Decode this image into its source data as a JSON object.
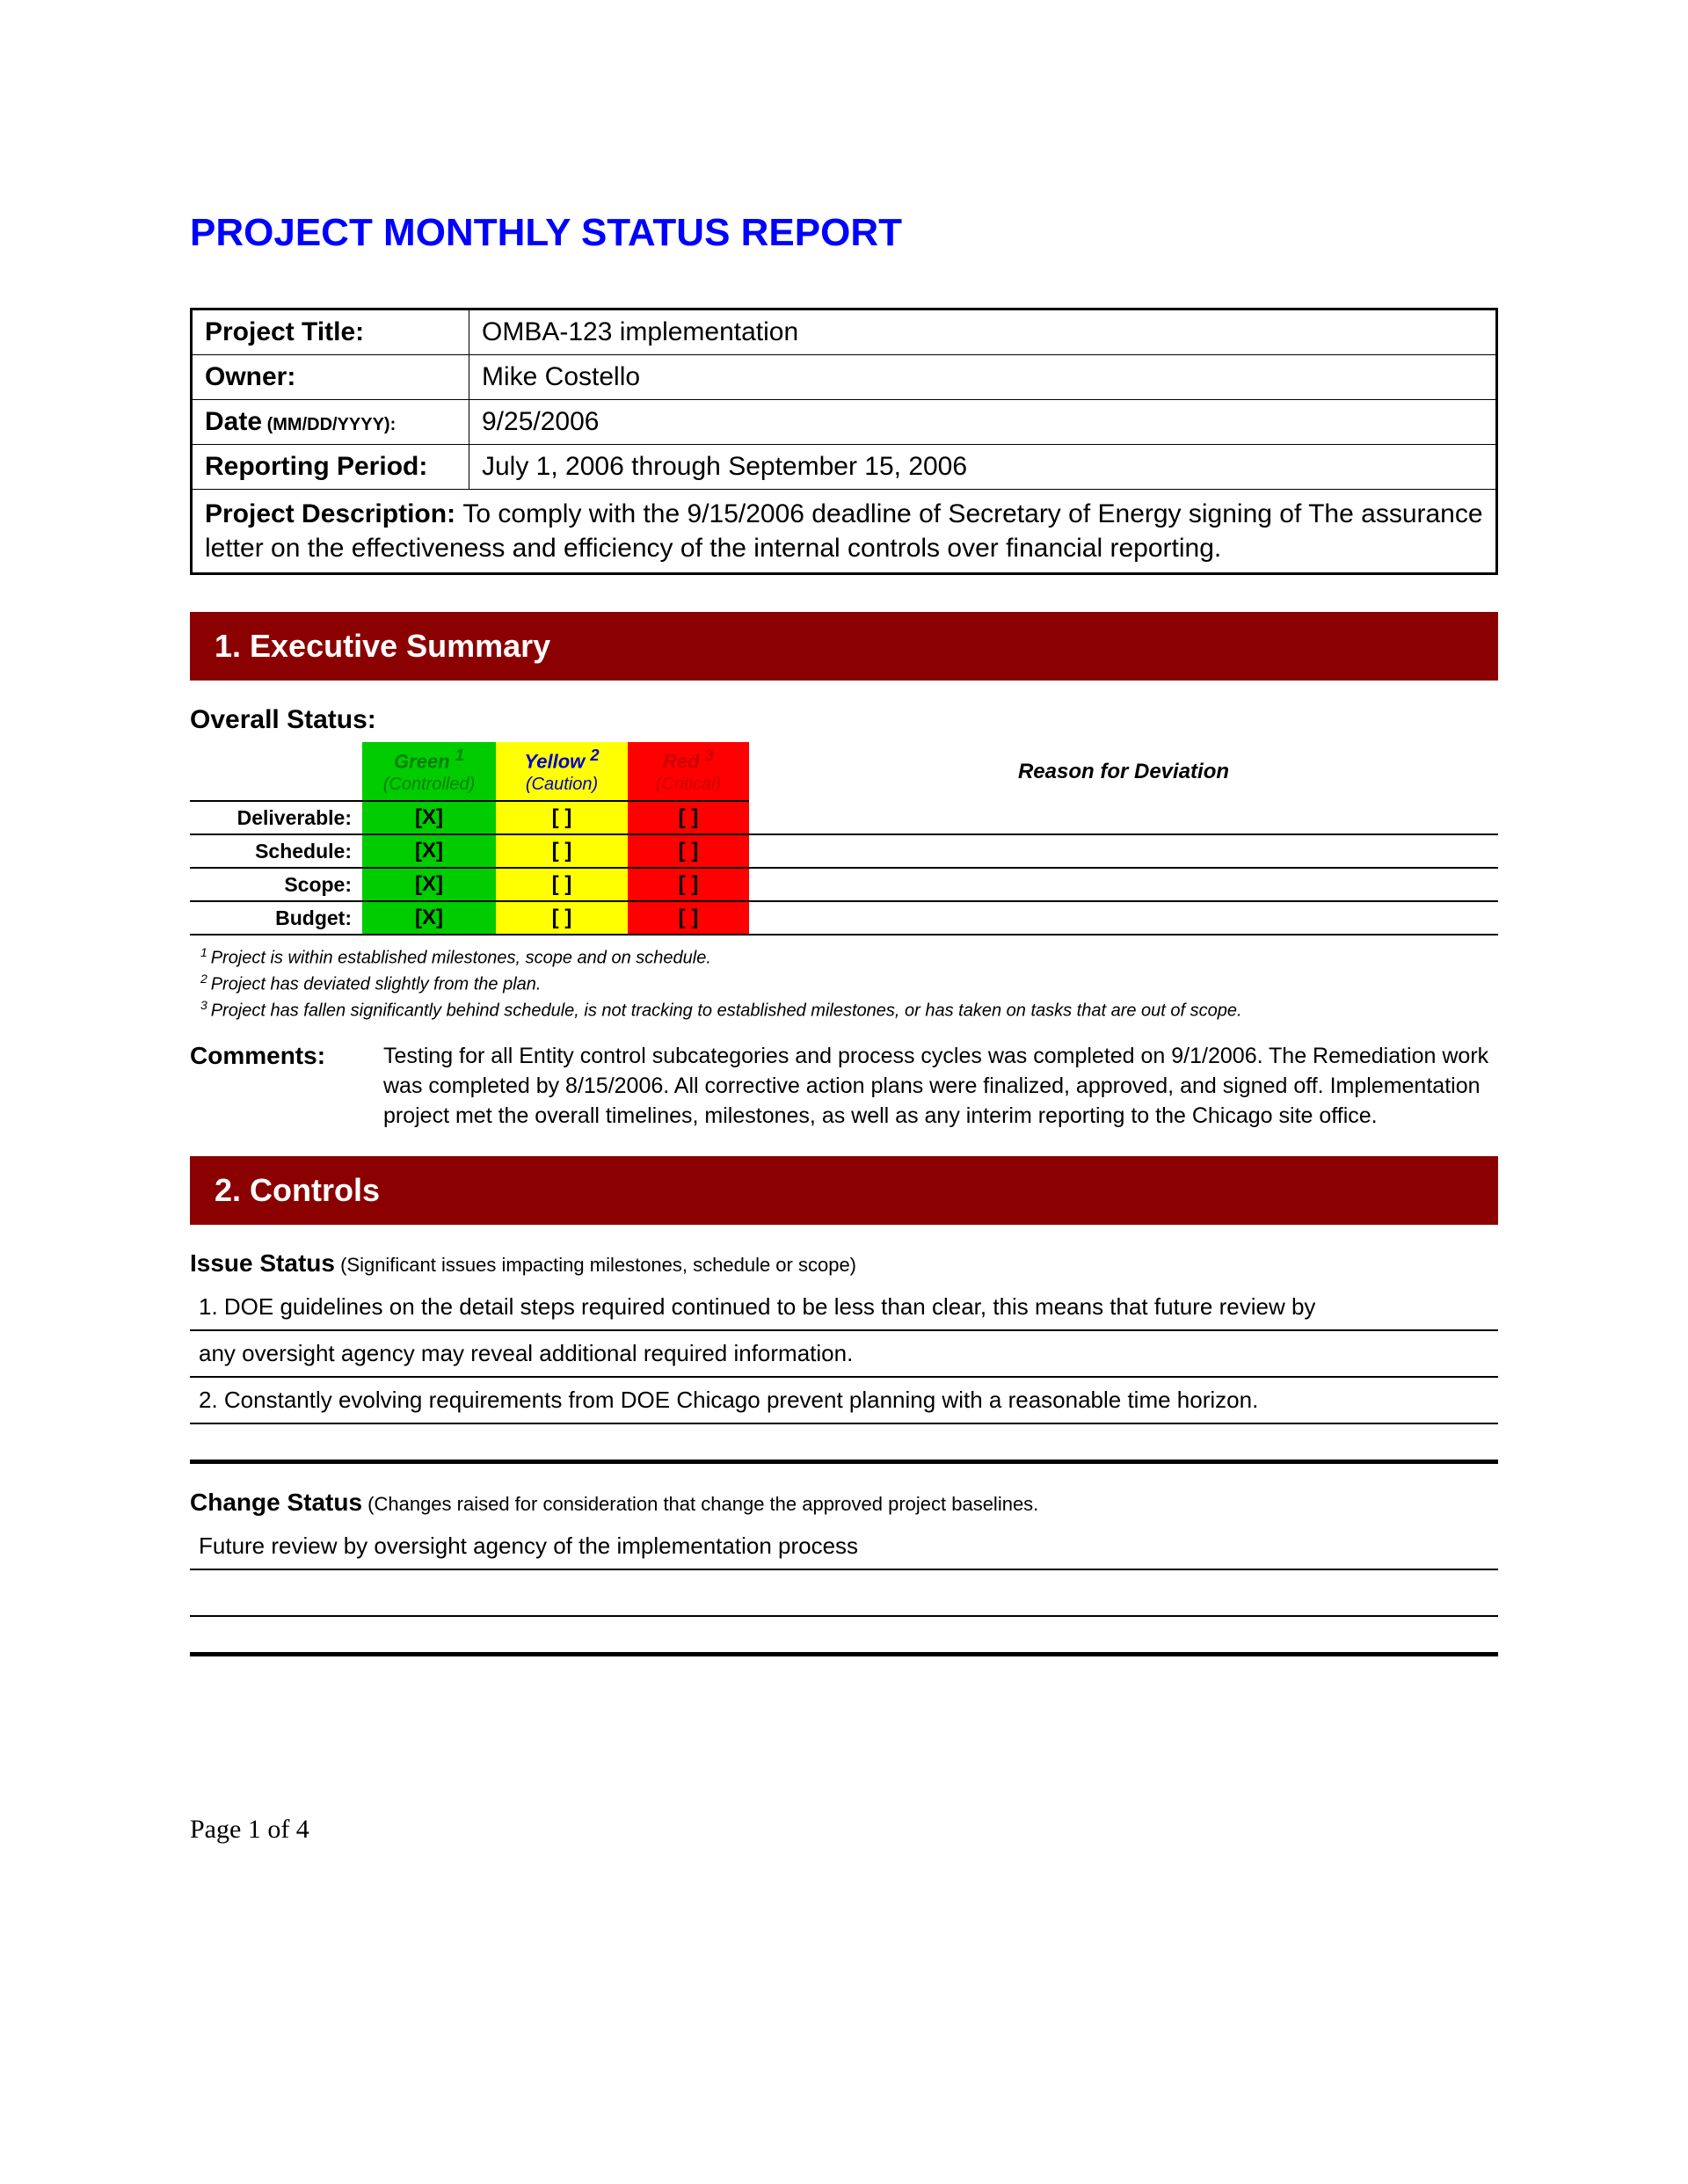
{
  "title": "PROJECT MONTHLY STATUS REPORT",
  "colors": {
    "title": "#0000ff",
    "banner_bg": "#8b0000",
    "banner_text": "#ffffff",
    "green": "#00cc00",
    "yellow": "#ffff00",
    "red": "#ff0000"
  },
  "meta": {
    "projectTitle_label": "Project Title:",
    "projectTitle_value": "OMBA-123 implementation",
    "owner_label": "Owner:",
    "owner_value": "Mike Costello",
    "date_label": "Date",
    "date_suffix": " (MM/DD/YYYY):",
    "date_value": "9/25/2006",
    "period_label": "Reporting Period:",
    "period_value": "July 1, 2006 through September 15, 2006",
    "desc_label": "Project Description: ",
    "desc_value": "To comply with the 9/15/2006 deadline of Secretary of Energy signing of The assurance letter on the effectiveness and efficiency of the internal controls over financial reporting."
  },
  "sections": {
    "exec": "1.  Executive Summary",
    "controls": "2.  Controls"
  },
  "overall": {
    "heading": "Overall Status:",
    "headers": {
      "green": "Green",
      "green_sup": "1",
      "green_sub": "(Controlled)",
      "yellow": "Yellow",
      "yellow_sup": "2",
      "yellow_sub": "(Caution)",
      "red": "Red",
      "red_sup": "3",
      "red_sub": "(Critical)",
      "reason": "Reason for Deviation"
    },
    "rows": [
      {
        "label": "Deliverable:",
        "g": "[X]",
        "y": "[   ]",
        "r": "[   ]"
      },
      {
        "label": "Schedule:",
        "g": "[X]",
        "y": "[   ]",
        "r": "[   ]"
      },
      {
        "label": "Scope:",
        "g": "[X]",
        "y": "[   ]",
        "r": "[   ]"
      },
      {
        "label": "Budget:",
        "g": "[X]",
        "y": "[   ]",
        "r": "[   ]"
      }
    ],
    "footnotes": {
      "f1": "Project is within established milestones, scope and on schedule.",
      "f2": "Project has deviated slightly from the plan.",
      "f3": "Project has fallen significantly behind schedule, is not tracking to established milestones, or has taken on tasks that are out of scope."
    },
    "comments_label": "Comments:",
    "comments_text": "Testing for all Entity control subcategories and process cycles was completed on 9/1/2006.  The Remediation work was completed by 8/15/2006.  All corrective action plans were finalized, approved, and signed off.  Implementation project met the overall timelines, milestones, as well as any interim reporting to the Chicago site office."
  },
  "controls": {
    "issue_heading": "Issue Status",
    "issue_sub": " (Significant issues impacting milestones, schedule or scope)",
    "issues": [
      "1. DOE guidelines on the detail steps required continued to be less than clear, this means that future review by",
      "any oversight agency may  reveal additional required information.",
      "2. Constantly evolving requirements from DOE Chicago prevent planning with a reasonable time horizon."
    ],
    "change_heading": "Change Status",
    "change_sub": " (Changes raised for consideration that change the approved project baselines.",
    "change_line": "Future review by oversight agency of the implementation process"
  },
  "footer": "Page 1 of 4"
}
